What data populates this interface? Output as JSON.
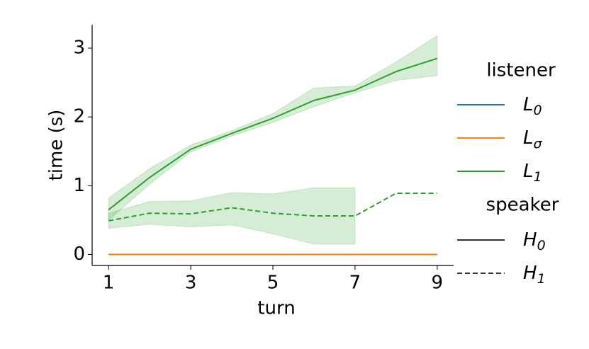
{
  "chart_data": {
    "type": "line",
    "xlabel": "turn",
    "ylabel": "time (s)",
    "x": [
      1,
      2,
      3,
      4,
      5,
      6,
      7,
      8,
      9
    ],
    "xlim": [
      0.6,
      9.4
    ],
    "xticks": [
      1,
      3,
      5,
      7,
      9
    ],
    "ylim": [
      -0.16,
      3.34
    ],
    "yticks": [
      0,
      1,
      2,
      3
    ],
    "listener_title": "listener",
    "speaker_title": "speaker",
    "speakers": [
      {
        "name": "H",
        "sub": "0",
        "dash": "solid"
      },
      {
        "name": "H",
        "sub": "1",
        "dash": "dashed"
      }
    ],
    "series": [
      {
        "name": "L",
        "sub": "0",
        "color": "#1f77b4",
        "lines": [
          {
            "speaker": 0,
            "values": [
              0,
              0,
              0,
              0,
              0,
              0,
              0,
              0,
              0
            ]
          }
        ]
      },
      {
        "name": "L",
        "sub": "σ",
        "color": "#ff7f0e",
        "lines": [
          {
            "speaker": 0,
            "values": [
              0,
              0,
              0,
              0,
              0,
              0,
              0,
              0,
              0
            ]
          }
        ]
      },
      {
        "name": "L",
        "sub": "1",
        "color": "#2ca02c",
        "lines": [
          {
            "speaker": 0,
            "values": [
              0.65,
              1.12,
              1.53,
              1.76,
              1.98,
              2.24,
              2.39,
              2.66,
              2.85
            ],
            "lower": [
              0.5,
              1.02,
              1.49,
              1.72,
              1.92,
              2.15,
              2.35,
              2.53,
              2.6
            ],
            "upper": [
              0.82,
              1.25,
              1.59,
              1.8,
              2.05,
              2.42,
              2.45,
              2.8,
              3.18
            ]
          },
          {
            "speaker": 1,
            "values": [
              0.49,
              0.6,
              0.59,
              0.68,
              0.6,
              0.56,
              0.56,
              0.89,
              0.89
            ],
            "lower": [
              0.38,
              0.44,
              0.4,
              0.43,
              0.3,
              0.15,
              0.15,
              null,
              null
            ],
            "upper": [
              0.6,
              0.77,
              0.78,
              0.9,
              0.88,
              0.97,
              0.97,
              null,
              null
            ]
          }
        ]
      }
    ]
  }
}
